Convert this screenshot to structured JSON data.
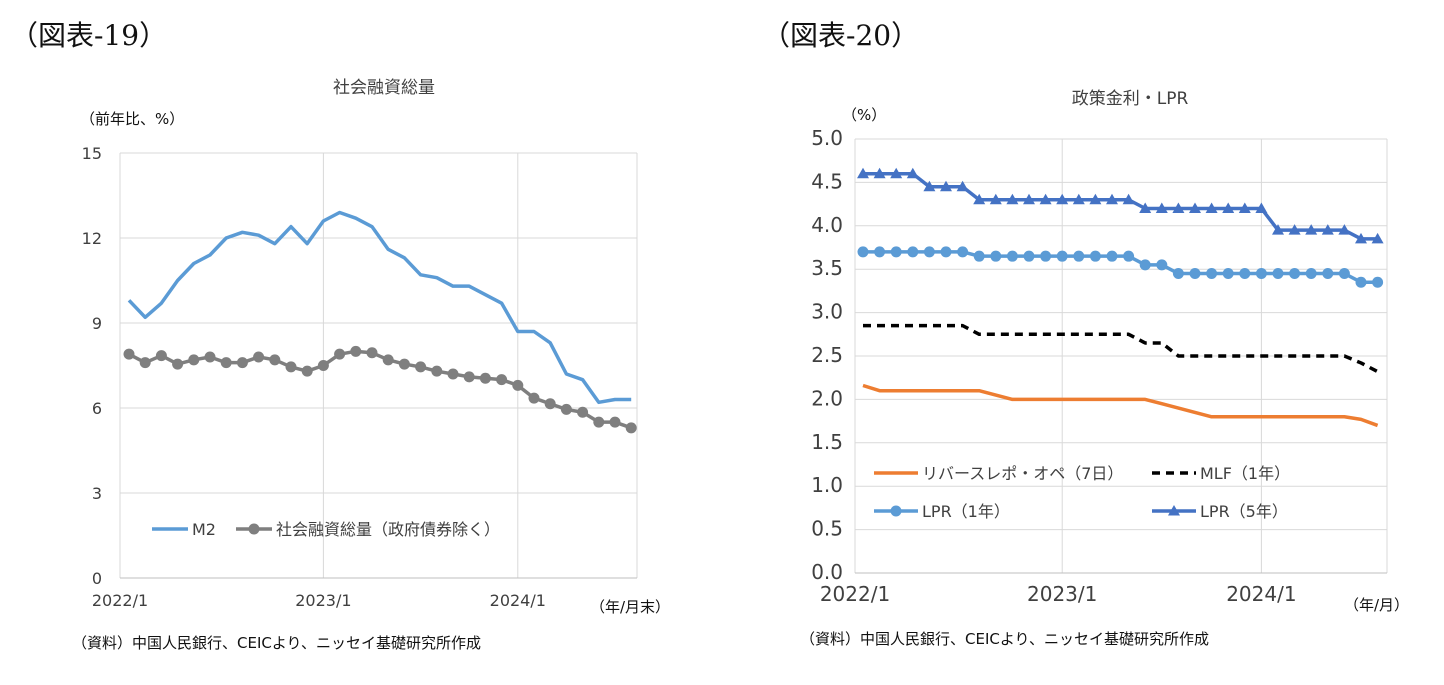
{
  "figures": [
    {
      "figure_label": "（図表-19）",
      "source": "（資料）中国人民銀行、CEICより、ニッセイ基礎研究所作成"
    },
    {
      "figure_label": "（図表-20）",
      "source": "（資料）中国人民銀行、CEICより、ニッセイ基礎研究所作成"
    }
  ],
  "chart_data": [
    {
      "type": "line",
      "title": "社会融資総量",
      "ylabel": "（前年比、%）",
      "xlabel": "（年/月末）",
      "ylim": [
        0,
        15
      ],
      "yticks": [
        "0",
        "3",
        "6",
        "9",
        "12",
        "15"
      ],
      "xtick_labels": [
        "2022/1",
        "2023/1",
        "2024/1"
      ],
      "xtick_index": [
        0,
        12,
        24
      ],
      "n_points": 32,
      "legend_position": "bottom-left",
      "series": [
        {
          "name": "M2",
          "color": "#5B9BD5",
          "marker": "none",
          "values": [
            9.8,
            9.2,
            9.7,
            10.5,
            11.1,
            11.4,
            12.0,
            12.2,
            12.1,
            11.8,
            12.4,
            11.8,
            12.6,
            12.9,
            12.7,
            12.4,
            11.6,
            11.3,
            10.7,
            10.6,
            10.3,
            10.3,
            10.0,
            9.7,
            8.7,
            8.7,
            8.3,
            7.2,
            7.0,
            6.2,
            6.3,
            6.3
          ]
        },
        {
          "name": "社会融資総量（政府債券除く）",
          "color": "#7F7F7F",
          "marker": "circle",
          "values": [
            7.9,
            7.6,
            7.85,
            7.55,
            7.7,
            7.8,
            7.6,
            7.6,
            7.8,
            7.7,
            7.45,
            7.3,
            7.5,
            7.9,
            8.0,
            7.95,
            7.7,
            7.55,
            7.45,
            7.3,
            7.2,
            7.1,
            7.05,
            7.0,
            6.8,
            6.35,
            6.15,
            5.95,
            5.85,
            5.5,
            5.5,
            5.3
          ]
        }
      ]
    },
    {
      "type": "line",
      "title": "政策金利・LPR",
      "ylabel": "（%）",
      "xlabel": "（年/月）",
      "ylim": [
        0,
        5
      ],
      "yticks": [
        "0.0",
        "0.5",
        "1.0",
        "1.5",
        "2.0",
        "2.5",
        "3.0",
        "3.5",
        "4.0",
        "4.5",
        "5.0"
      ],
      "xtick_labels": [
        "2022/1",
        "2023/1",
        "2024/1"
      ],
      "xtick_index": [
        0,
        12,
        24
      ],
      "n_points": 32,
      "legend_position": "bottom",
      "series": [
        {
          "name": "リバースレポ・オペ（7日）",
          "color": "#ED7D31",
          "marker": "none",
          "values": [
            2.16,
            2.1,
            2.1,
            2.1,
            2.1,
            2.1,
            2.1,
            2.1,
            2.05,
            2.0,
            2.0,
            2.0,
            2.0,
            2.0,
            2.0,
            2.0,
            2.0,
            2.0,
            1.95,
            1.9,
            1.85,
            1.8,
            1.8,
            1.8,
            1.8,
            1.8,
            1.8,
            1.8,
            1.8,
            1.8,
            1.77,
            1.7
          ]
        },
        {
          "name": "MLF（1年）",
          "color": "#000000",
          "marker": "none",
          "dashed": true,
          "values": [
            2.85,
            2.85,
            2.85,
            2.85,
            2.85,
            2.85,
            2.85,
            2.75,
            2.75,
            2.75,
            2.75,
            2.75,
            2.75,
            2.75,
            2.75,
            2.75,
            2.75,
            2.65,
            2.65,
            2.5,
            2.5,
            2.5,
            2.5,
            2.5,
            2.5,
            2.5,
            2.5,
            2.5,
            2.5,
            2.5,
            2.42,
            2.32
          ]
        },
        {
          "name": "LPR（1年）",
          "color": "#5B9BD5",
          "marker": "circle",
          "values": [
            3.7,
            3.7,
            3.7,
            3.7,
            3.7,
            3.7,
            3.7,
            3.65,
            3.65,
            3.65,
            3.65,
            3.65,
            3.65,
            3.65,
            3.65,
            3.65,
            3.65,
            3.55,
            3.55,
            3.45,
            3.45,
            3.45,
            3.45,
            3.45,
            3.45,
            3.45,
            3.45,
            3.45,
            3.45,
            3.45,
            3.35,
            3.35
          ]
        },
        {
          "name": "LPR（5年）",
          "color": "#4472C4",
          "marker": "triangle",
          "values": [
            4.6,
            4.6,
            4.6,
            4.6,
            4.45,
            4.45,
            4.45,
            4.3,
            4.3,
            4.3,
            4.3,
            4.3,
            4.3,
            4.3,
            4.3,
            4.3,
            4.3,
            4.2,
            4.2,
            4.2,
            4.2,
            4.2,
            4.2,
            4.2,
            4.2,
            3.95,
            3.95,
            3.95,
            3.95,
            3.95,
            3.85,
            3.85
          ]
        }
      ]
    }
  ]
}
